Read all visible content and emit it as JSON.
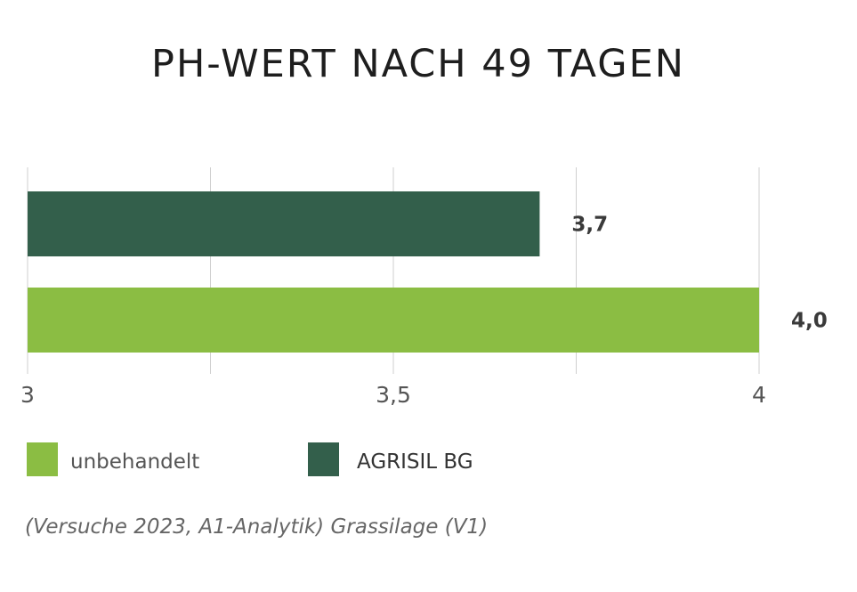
{
  "chart_data": {
    "type": "bar",
    "orientation": "horizontal",
    "title": "PH-WERT NACH 49 TAGEN",
    "xlim": [
      3,
      4
    ],
    "x_ticks": [
      {
        "value": 3,
        "label": "3"
      },
      {
        "value": 3.5,
        "label": "3,5"
      },
      {
        "value": 4,
        "label": "4"
      }
    ],
    "gridlines": [
      3,
      3.25,
      3.5,
      3.75,
      4
    ],
    "grid": true,
    "series": [
      {
        "name": "AGRISIL BG",
        "value": 3.7,
        "value_label": "3,7",
        "color": "#335f4b"
      },
      {
        "name": "unbehandelt",
        "value": 4.0,
        "value_label": "4,0",
        "color": "#8bbd43"
      }
    ],
    "legend": {
      "position": "bottom-left",
      "items": [
        {
          "label": "unbehandelt",
          "color": "#8bbd43"
        },
        {
          "label": "AGRISIL BG",
          "color": "#335f4b"
        }
      ]
    },
    "footnote": "(Versuche 2023, A1-Analytik) Grassilage (V1)"
  }
}
